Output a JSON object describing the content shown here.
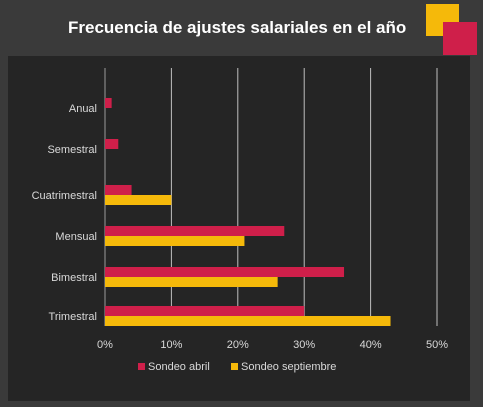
{
  "title": "Frecuencia de ajustes salariales en el año",
  "colors": {
    "background": "#3a3a3a",
    "panel": "#252525",
    "abril": "#cf1f4a",
    "septiembre": "#f5b90a",
    "text": "#d9d9d9",
    "grid": "#bfbfbf"
  },
  "chart_data": {
    "type": "bar",
    "orientation": "horizontal",
    "categories": [
      "Anual",
      "Semestral",
      "Cuatrimestral",
      "Mensual",
      "Bimestral",
      "Trimestral"
    ],
    "series": [
      {
        "name": "Sondeo abril",
        "color": "#cf1f4a",
        "values": [
          1,
          2,
          4,
          27,
          36,
          30
        ]
      },
      {
        "name": "Sondeo septiembre",
        "color": "#f5b90a",
        "values": [
          null,
          null,
          10,
          21,
          26,
          43
        ]
      }
    ],
    "xlim": [
      0,
      50
    ],
    "xticks": [
      "0%",
      "10%",
      "20%",
      "30%",
      "40%",
      "50%"
    ],
    "grid": "vertical",
    "legend": "bottom"
  }
}
